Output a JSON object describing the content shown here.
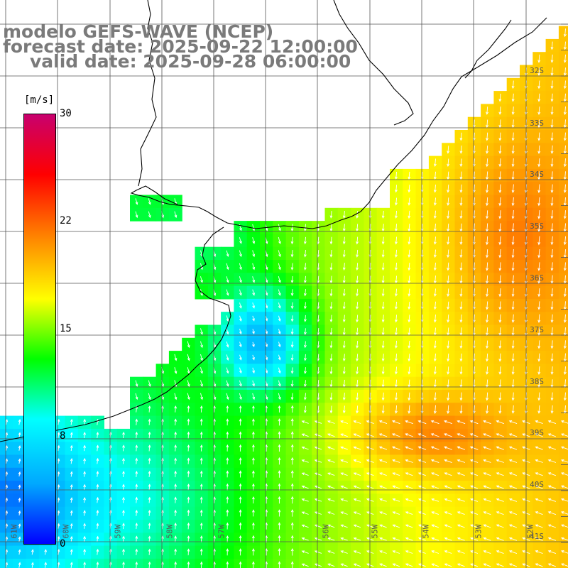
{
  "title": {
    "line1": "modelo GEFS-WAVE (NCEP)",
    "line2": "forecast date: 2025-09-22 12:00:00",
    "line3": "valid date: 2025-09-28 06:00:00"
  },
  "colorbar": {
    "unit": "[m/s]",
    "ticks": [
      "30",
      "22",
      "15",
      "8",
      "0"
    ],
    "range": [
      0,
      30
    ],
    "colors": [
      "#0000ff",
      "#00a8ff",
      "#00ffff",
      "#00ff00",
      "#ffff00",
      "#ff8800",
      "#ff0000",
      "#c8006e"
    ]
  },
  "lat_labels": [
    "32S",
    "33S",
    "34S",
    "35S",
    "36S",
    "37S",
    "38S",
    "39S",
    "40S",
    "41S"
  ],
  "lon_labels": [
    "61W",
    "60W",
    "59W",
    "58W",
    "57W",
    "56W",
    "55W",
    "54W",
    "53W",
    "52W"
  ],
  "map_features": [
    "wind-speed-field",
    "wind-direction-arrows",
    "coastline",
    "graticule"
  ]
}
